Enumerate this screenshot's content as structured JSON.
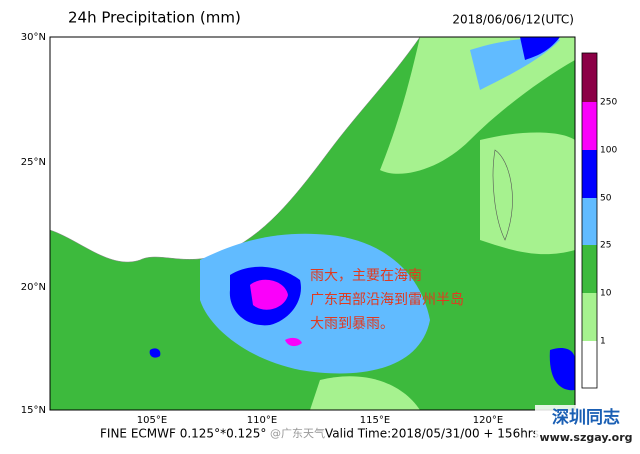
{
  "header": {
    "title": "24h Precipitation (mm)",
    "time": "2018/06/06/12(UTC)"
  },
  "lat_labels": [
    "30°N",
    "25°N",
    "20°N",
    "15°N"
  ],
  "lon_labels": [
    "105°E",
    "110°E",
    "115°E",
    "120°E"
  ],
  "colorbar": {
    "labels": [
      "250",
      "100",
      "50",
      "25",
      "10",
      "1"
    ]
  },
  "annotation": {
    "lines": [
      "雨大，主要在海南",
      "广东西部沿海到雷州半岛",
      "大雨到暴雨。"
    ]
  },
  "footer": {
    "model": "FINE ECMWF 0.125°*0.125°",
    "source": "@广东天气",
    "valid": "Valid Time:2018/05/31/00 + 156hrs"
  },
  "watermark": {
    "name": "深圳同志",
    "url": "www.szgay.org"
  }
}
